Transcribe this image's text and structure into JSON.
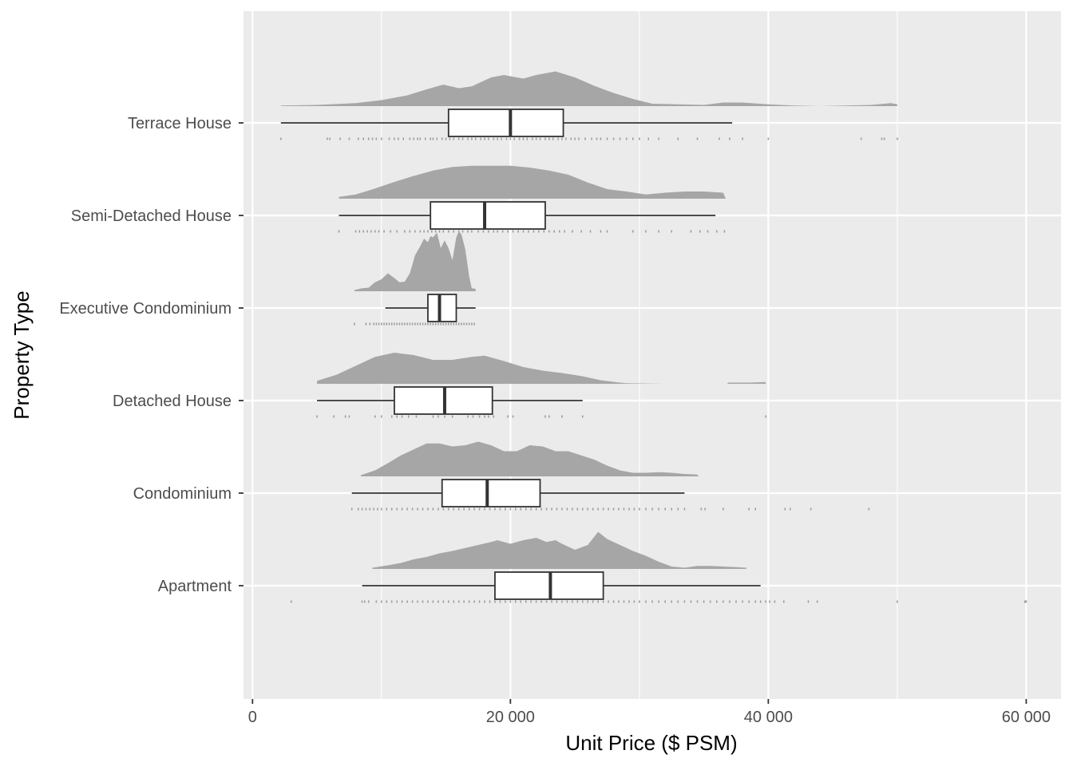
{
  "chart_data": {
    "type": "raincloud",
    "title": "",
    "xlabel": "Unit Price ($ PSM)",
    "ylabel": "Property Type",
    "xlim": [
      -700,
      62700
    ],
    "xticks": [
      0,
      20000,
      40000,
      60000
    ],
    "xtick_labels": [
      "0",
      "20 000",
      "40 000",
      "60 000"
    ],
    "grid": true,
    "legend": "none",
    "colors": {
      "panel": "#ebebeb",
      "grid": "#ffffff",
      "density": "#a6a6a6",
      "box_fill": "#ffffff",
      "box_line": "#333333",
      "points": "#999999",
      "tick_label": "#4d4d4d"
    },
    "categories": [
      "Terrace House",
      "Semi-Detached House",
      "Executive Condominium",
      "Detached House",
      "Condominium",
      "Apartment"
    ],
    "series": [
      {
        "name": "Terrace House",
        "box": {
          "whisker_low": 2200,
          "q1": 15200,
          "median": 20000,
          "q3": 24100,
          "whisker_high": 37200
        },
        "outliers": [
          38000,
          40000,
          47200,
          48800,
          49000,
          50000
        ],
        "density": [
          [
            2200,
            0.01
          ],
          [
            5000,
            0.02
          ],
          [
            8000,
            0.05
          ],
          [
            10000,
            0.1
          ],
          [
            12000,
            0.18
          ],
          [
            13500,
            0.28
          ],
          [
            14800,
            0.36
          ],
          [
            16000,
            0.3
          ],
          [
            17000,
            0.33
          ],
          [
            18500,
            0.48
          ],
          [
            19500,
            0.52
          ],
          [
            21000,
            0.46
          ],
          [
            22000,
            0.52
          ],
          [
            23500,
            0.58
          ],
          [
            25000,
            0.48
          ],
          [
            26500,
            0.34
          ],
          [
            28000,
            0.22
          ],
          [
            29500,
            0.12
          ],
          [
            31000,
            0.04
          ],
          [
            33000,
            0.03
          ],
          [
            35000,
            0.02
          ],
          [
            36500,
            0.06
          ],
          [
            38000,
            0.06
          ],
          [
            40000,
            0.03
          ],
          [
            42000,
            0.01
          ],
          [
            44000,
            0
          ],
          [
            46000,
            0.01
          ],
          [
            48000,
            0.02
          ],
          [
            49500,
            0.05
          ],
          [
            50000,
            0.03
          ]
        ],
        "points": [
          2200,
          5800,
          6000,
          6800,
          7500,
          8200,
          8600,
          9000,
          9300,
          9600,
          10000,
          10600,
          11000,
          11300,
          11700,
          12200,
          12500,
          12800,
          13000,
          13400,
          13800,
          14000,
          14300,
          14700,
          15000,
          15300,
          15600,
          16000,
          16300,
          16700,
          17000,
          17300,
          17700,
          18000,
          18300,
          18700,
          19000,
          19300,
          19700,
          20000,
          20300,
          20700,
          21000,
          21300,
          21700,
          22000,
          22300,
          22700,
          23000,
          23300,
          23700,
          24000,
          24300,
          24700,
          25000,
          25300,
          25800,
          26300,
          26700,
          27000,
          27500,
          28000,
          28500,
          29000,
          29500,
          30000,
          30700,
          31500,
          33000,
          34500,
          36200,
          37000,
          38000,
          40000,
          47200,
          48800,
          49000,
          50000
        ]
      },
      {
        "name": "Semi-Detached House",
        "box": {
          "whisker_low": 6700,
          "q1": 13800,
          "median": 18000,
          "q3": 22700,
          "whisker_high": 35900
        },
        "outliers": [],
        "density": [
          [
            6700,
            0.03
          ],
          [
            8000,
            0.07
          ],
          [
            9500,
            0.17
          ],
          [
            11000,
            0.28
          ],
          [
            12500,
            0.38
          ],
          [
            14000,
            0.47
          ],
          [
            15500,
            0.53
          ],
          [
            17000,
            0.55
          ],
          [
            18500,
            0.55
          ],
          [
            20000,
            0.55
          ],
          [
            21500,
            0.52
          ],
          [
            23000,
            0.47
          ],
          [
            24500,
            0.4
          ],
          [
            26000,
            0.27
          ],
          [
            27500,
            0.16
          ],
          [
            29000,
            0.12
          ],
          [
            30500,
            0.07
          ],
          [
            32000,
            0.1
          ],
          [
            33500,
            0.12
          ],
          [
            35000,
            0.12
          ],
          [
            36500,
            0.1
          ],
          [
            36700,
            0
          ]
        ],
        "points": [
          6700,
          8000,
          8300,
          8600,
          8900,
          9200,
          9500,
          9800,
          10200,
          10700,
          11200,
          11800,
          12200,
          12600,
          13000,
          13300,
          13600,
          13900,
          14200,
          14500,
          14800,
          15200,
          15600,
          16000,
          16300,
          16700,
          17000,
          17500,
          17900,
          18300,
          18700,
          19000,
          19400,
          19800,
          20200,
          20600,
          21000,
          21400,
          21800,
          22200,
          22600,
          23000,
          23400,
          23800,
          24200,
          24800,
          25500,
          26200,
          27000,
          27500,
          29500,
          30500,
          31500,
          32500,
          34000,
          34700,
          35300,
          36000,
          36600
        ]
      },
      {
        "name": "Executive Condominium",
        "box": {
          "whisker_low": 10300,
          "q1": 13600,
          "median": 14500,
          "q3": 15800,
          "whisker_high": 17300
        },
        "outliers": [],
        "density": [
          [
            7900,
            0.02
          ],
          [
            8500,
            0.05
          ],
          [
            9000,
            0.06
          ],
          [
            9500,
            0.15
          ],
          [
            10000,
            0.2
          ],
          [
            10500,
            0.3
          ],
          [
            11000,
            0.22
          ],
          [
            11400,
            0.15
          ],
          [
            11800,
            0.16
          ],
          [
            12200,
            0.3
          ],
          [
            12600,
            0.6
          ],
          [
            13000,
            0.75
          ],
          [
            13300,
            0.88
          ],
          [
            13600,
            0.82
          ],
          [
            13800,
            0.92
          ],
          [
            14000,
            0.9
          ],
          [
            14300,
            0.98
          ],
          [
            14600,
            0.72
          ],
          [
            14900,
            0.85
          ],
          [
            15200,
            0.72
          ],
          [
            15500,
            0.52
          ],
          [
            15800,
            0.9
          ],
          [
            16000,
            1.0
          ],
          [
            16200,
            0.95
          ],
          [
            16500,
            0.7
          ],
          [
            16800,
            0.25
          ],
          [
            17000,
            0.05
          ],
          [
            17300,
            0.04
          ]
        ],
        "points": [
          7900,
          8800,
          9100,
          9400,
          9600,
          9800,
          10000,
          10200,
          10400,
          10600,
          10800,
          11000,
          11200,
          11400,
          11600,
          11800,
          12000,
          12200,
          12400,
          12600,
          12800,
          13000,
          13200,
          13400,
          13600,
          13800,
          14000,
          14200,
          14400,
          14600,
          14800,
          15000,
          15200,
          15400,
          15600,
          15800,
          16000,
          16200,
          16400,
          16600,
          16800,
          17000,
          17200
        ]
      },
      {
        "name": "Detached House",
        "box": {
          "whisker_low": 5000,
          "q1": 11000,
          "median": 14900,
          "q3": 18600,
          "whisker_high": 25600
        },
        "outliers": [
          39800
        ],
        "density": [
          [
            5000,
            0.05
          ],
          [
            6500,
            0.15
          ],
          [
            8000,
            0.3
          ],
          [
            9500,
            0.45
          ],
          [
            11000,
            0.52
          ],
          [
            12500,
            0.48
          ],
          [
            14000,
            0.4
          ],
          [
            15500,
            0.4
          ],
          [
            17000,
            0.45
          ],
          [
            18000,
            0.47
          ],
          [
            19500,
            0.38
          ],
          [
            21000,
            0.28
          ],
          [
            22500,
            0.22
          ],
          [
            24000,
            0.18
          ],
          [
            25500,
            0.13
          ],
          [
            27000,
            0.06
          ],
          [
            28500,
            0.02
          ],
          [
            29000,
            0.01
          ],
          [
            32000,
            0
          ],
          [
            36800,
            0
          ],
          [
            36900,
            0.02
          ],
          [
            38500,
            0.02
          ],
          [
            39800,
            0.03
          ]
        ],
        "points": [
          5000,
          6300,
          7200,
          7500,
          9500,
          10000,
          10800,
          11200,
          11600,
          12100,
          12700,
          14000,
          14400,
          14900,
          15500,
          16700,
          17100,
          17600,
          18000,
          18300,
          18700,
          19800,
          20200,
          22700,
          23000,
          24000,
          25600,
          39800
        ]
      },
      {
        "name": "Condominium",
        "box": {
          "whisker_low": 7700,
          "q1": 14700,
          "median": 18200,
          "q3": 22300,
          "whisker_high": 33500
        },
        "outliers": [
          34800,
          35100,
          36500,
          38500,
          39000,
          41300,
          41700,
          43300,
          47800
        ],
        "density": [
          [
            8400,
            0.02
          ],
          [
            9500,
            0.1
          ],
          [
            10500,
            0.22
          ],
          [
            11500,
            0.35
          ],
          [
            12500,
            0.45
          ],
          [
            13500,
            0.55
          ],
          [
            14500,
            0.55
          ],
          [
            15500,
            0.5
          ],
          [
            16500,
            0.52
          ],
          [
            17500,
            0.58
          ],
          [
            18500,
            0.52
          ],
          [
            19500,
            0.42
          ],
          [
            20500,
            0.42
          ],
          [
            21500,
            0.52
          ],
          [
            22500,
            0.5
          ],
          [
            23500,
            0.42
          ],
          [
            24500,
            0.42
          ],
          [
            25500,
            0.35
          ],
          [
            26500,
            0.28
          ],
          [
            27500,
            0.18
          ],
          [
            28500,
            0.1
          ],
          [
            29500,
            0.06
          ],
          [
            30500,
            0.06
          ],
          [
            31500,
            0.07
          ],
          [
            32500,
            0.06
          ],
          [
            33500,
            0.04
          ],
          [
            34500,
            0.03
          ],
          [
            34600,
            0
          ]
        ],
        "points": [
          7700,
          8200,
          8500,
          8800,
          9100,
          9400,
          9700,
          10000,
          10400,
          10800,
          11200,
          11600,
          12000,
          12400,
          12800,
          13200,
          13600,
          14000,
          14400,
          14800,
          15200,
          15600,
          16000,
          16400,
          16800,
          17200,
          17600,
          18000,
          18400,
          18800,
          19200,
          19600,
          20000,
          20400,
          20800,
          21200,
          21600,
          22000,
          22400,
          22800,
          23200,
          23600,
          24000,
          24400,
          24800,
          25200,
          25600,
          26000,
          26400,
          26800,
          27200,
          27600,
          28000,
          28400,
          28800,
          29200,
          29600,
          30000,
          30500,
          31000,
          31500,
          32000,
          32500,
          33000,
          33500,
          34800,
          35100,
          36500,
          38500,
          39000,
          41300,
          41700,
          43300,
          47800
        ]
      },
      {
        "name": "Apartment",
        "box": {
          "whisker_low": 8500,
          "q1": 18800,
          "median": 23100,
          "q3": 27200,
          "whisker_high": 39400
        },
        "outliers": [
          39800,
          40100,
          40500,
          41200,
          43100,
          43800,
          50000,
          59900,
          60000
        ],
        "density": [
          [
            9300,
            0.02
          ],
          [
            10500,
            0.06
          ],
          [
            11500,
            0.1
          ],
          [
            12500,
            0.16
          ],
          [
            13500,
            0.2
          ],
          [
            14500,
            0.26
          ],
          [
            15500,
            0.3
          ],
          [
            16500,
            0.35
          ],
          [
            17500,
            0.4
          ],
          [
            18500,
            0.45
          ],
          [
            19000,
            0.48
          ],
          [
            20000,
            0.42
          ],
          [
            21000,
            0.48
          ],
          [
            22000,
            0.52
          ],
          [
            22800,
            0.45
          ],
          [
            23500,
            0.48
          ],
          [
            24000,
            0.42
          ],
          [
            25000,
            0.32
          ],
          [
            26000,
            0.4
          ],
          [
            26800,
            0.62
          ],
          [
            27500,
            0.5
          ],
          [
            28500,
            0.4
          ],
          [
            29500,
            0.3
          ],
          [
            30500,
            0.22
          ],
          [
            31500,
            0.12
          ],
          [
            32500,
            0.04
          ],
          [
            33500,
            0.02
          ],
          [
            34500,
            0.05
          ],
          [
            35500,
            0.05
          ],
          [
            36500,
            0.04
          ],
          [
            37500,
            0.03
          ],
          [
            38300,
            0.02
          ]
        ],
        "points": [
          3000,
          8500,
          8700,
          9000,
          9600,
          10000,
          10400,
          10800,
          11200,
          11600,
          12000,
          12400,
          12800,
          13200,
          13600,
          14000,
          14400,
          14800,
          15200,
          15600,
          16000,
          16400,
          16800,
          17200,
          17600,
          18000,
          18400,
          18800,
          19200,
          19600,
          20000,
          20400,
          20800,
          21200,
          21600,
          22000,
          22400,
          22800,
          23200,
          23600,
          24000,
          24400,
          24800,
          25200,
          25600,
          26000,
          26400,
          26800,
          27200,
          27600,
          28000,
          28400,
          28800,
          29200,
          29600,
          30000,
          30500,
          31000,
          31500,
          32000,
          32500,
          33000,
          33500,
          34000,
          34500,
          35000,
          35500,
          36000,
          36500,
          37000,
          37500,
          38000,
          38500,
          39000,
          39400,
          39800,
          40100,
          40500,
          41200,
          43100,
          43800,
          50000,
          59900,
          60000
        ]
      }
    ]
  }
}
